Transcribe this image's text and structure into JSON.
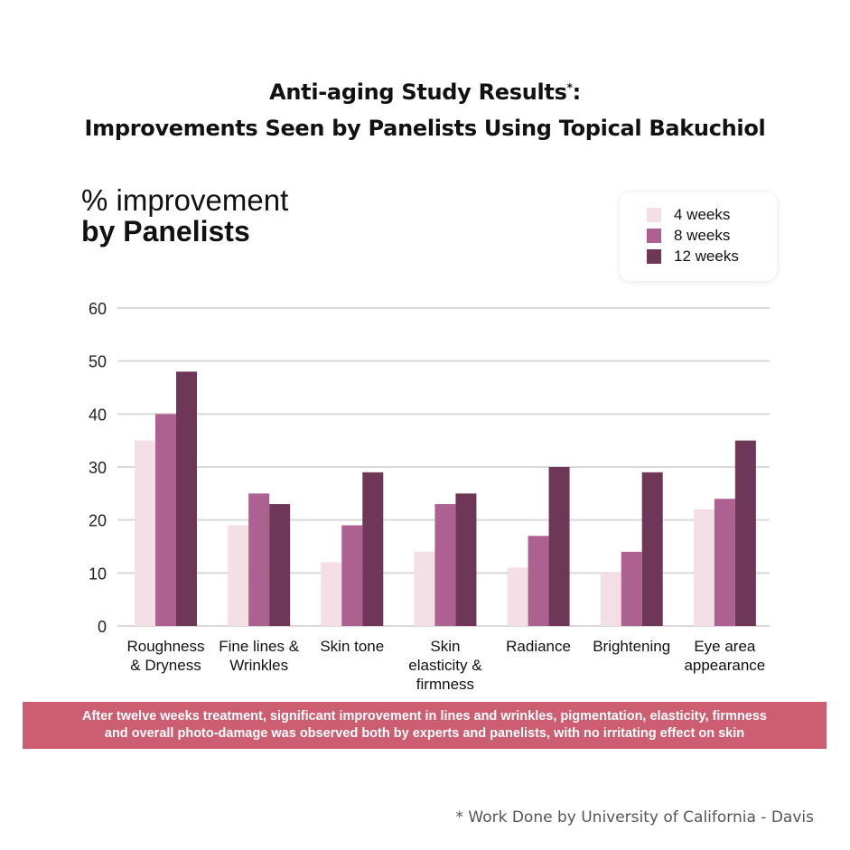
{
  "header": {
    "title_line1": "Anti-aging Study Results",
    "title_asterisk": "*",
    "title_colon": ":",
    "title_line2": "Improvements Seen by Panelists Using Topical Bakuchiol"
  },
  "subtitle": {
    "line1": "% improvement",
    "line2": "by Panelists"
  },
  "banner": {
    "line1": "After twelve weeks treatment, significant improvement in lines and wrinkles, pigmentation, elasticity, firmness",
    "line2": "and overall photo-damage was observed both by experts and panelists, with no irritating effect on skin",
    "color": "#cd5d71"
  },
  "footnote": "* Work Done by University of California - Davis",
  "chart_data": {
    "type": "bar",
    "title": "% improvement by Panelists",
    "xlabel": "",
    "ylabel": "",
    "ylim": [
      0,
      60
    ],
    "yticks": [
      0,
      10,
      20,
      30,
      40,
      50,
      60
    ],
    "grid": true,
    "legend_position": "top-right",
    "categories": [
      [
        "Roughness",
        "& Dryness"
      ],
      [
        "Fine lines &",
        "Wrinkles"
      ],
      [
        "Skin tone"
      ],
      [
        "Skin",
        "elasticity &",
        "firmness"
      ],
      [
        "Radiance"
      ],
      [
        "Brightening"
      ],
      [
        "Eye area",
        "appearance"
      ]
    ],
    "series": [
      {
        "name": "4 weeks",
        "color": "#f3dfe5",
        "values": [
          35,
          19,
          12,
          14,
          11,
          10,
          22
        ]
      },
      {
        "name": "8 weeks",
        "color": "#ad6191",
        "values": [
          40,
          25,
          19,
          23,
          17,
          14,
          24
        ]
      },
      {
        "name": "12 weeks",
        "color": "#6e3758",
        "values": [
          48,
          23,
          29,
          25,
          30,
          29,
          35
        ]
      }
    ]
  }
}
